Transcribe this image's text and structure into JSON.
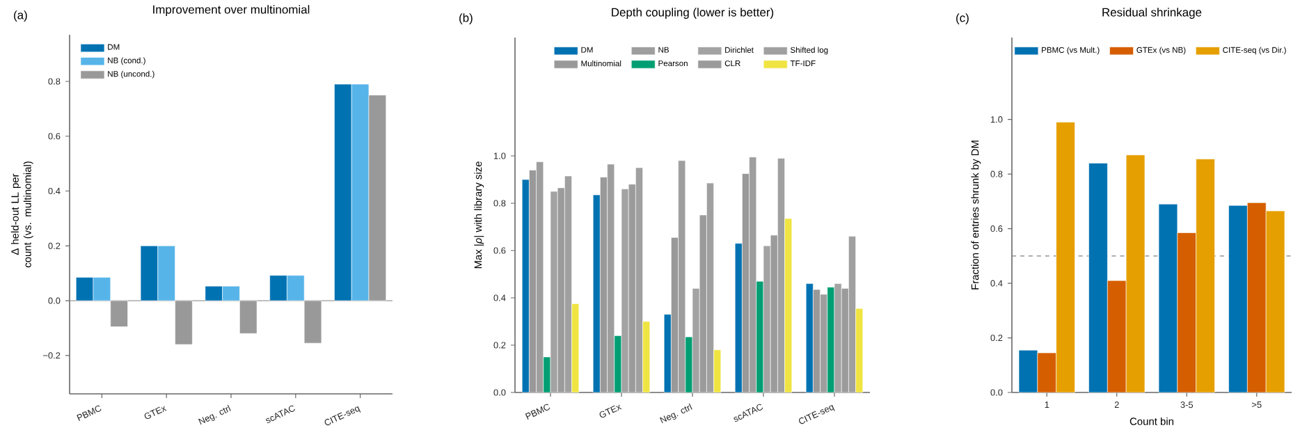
{
  "chart_data": [
    {
      "type": "bar",
      "title": "Improvement over multinomial",
      "ylabel": "Δ held-out LL per count (vs. multinomial)",
      "categories": [
        "PBMC",
        "GTEx",
        "Neg. ctrl",
        "scATAC",
        "CITE-seq"
      ],
      "series": [
        {
          "name": "DM",
          "color": "#0072b2",
          "values": [
            0.085,
            0.2,
            0.053,
            0.092,
            0.79
          ]
        },
        {
          "name": "NB (cond.)",
          "color": "#56b4e9",
          "values": [
            0.085,
            0.2,
            0.053,
            0.092,
            0.79
          ]
        },
        {
          "name": "NB (uncond.)",
          "color": "#999999",
          "values": [
            -0.095,
            -0.16,
            -0.12,
            -0.155,
            0.75
          ]
        }
      ],
      "ylim": [
        -0.34,
        0.97
      ],
      "yticks": [
        {
          "value": -0.2,
          "label": "−0.2"
        },
        {
          "value": 0,
          "label": "0.0"
        },
        {
          "value": 0.2,
          "label": "0.2"
        },
        {
          "value": 0.4,
          "label": "0.4"
        },
        {
          "value": 0.6,
          "label": "0.6"
        },
        {
          "value": 0.8,
          "label": "0.8"
        }
      ],
      "ref_lines": [
        {
          "axis": "y",
          "value": 0,
          "color": "#999999",
          "line_style": "solid"
        }
      ],
      "legend": "top left",
      "annotations": [
        "(a)"
      ]
    },
    {
      "type": "bar",
      "title": "Depth coupling (lower is better)",
      "ylabel": "Max |*ρ*| with library size",
      "categories": [
        "PBMC",
        "GTEx",
        "Neg. ctrl",
        "scATAC",
        "CITE-seq"
      ],
      "series": [
        {
          "name": "DM",
          "color": "#0072b2",
          "values": [
            0.9,
            0.835,
            0.33,
            0.63,
            0.46
          ]
        },
        {
          "name": "Multinomial",
          "color": "#999999",
          "values": [
            0.94,
            0.91,
            0.655,
            0.925,
            0.435
          ]
        },
        {
          "name": "NB",
          "color": "#9e9e9e",
          "values": [
            0.975,
            0.965,
            0.98,
            0.995,
            0.415
          ]
        },
        {
          "name": "Pearson",
          "color": "#009e73",
          "values": [
            0.15,
            0.24,
            0.235,
            0.47,
            0.445
          ]
        },
        {
          "name": "Dirichlet",
          "color": "#a3a3a3",
          "values": [
            0.85,
            0.86,
            0.44,
            0.62,
            0.46
          ]
        },
        {
          "name": "CLR",
          "color": "#9b9b9b",
          "values": [
            0.865,
            0.88,
            0.75,
            0.665,
            0.44
          ]
        },
        {
          "name": "Shifted log",
          "color": "#a0a0a0",
          "values": [
            0.915,
            0.95,
            0.885,
            0.99,
            0.66
          ]
        },
        {
          "name": "TF-IDF",
          "color": "#f0e442",
          "values": [
            0.375,
            0.3,
            0.18,
            0.735,
            0.355
          ]
        }
      ],
      "ylim": [
        0,
        1.5
      ],
      "yticks": [
        {
          "value": 0,
          "label": "0.0"
        },
        {
          "value": 0.2,
          "label": "0.2"
        },
        {
          "value": 0.4,
          "label": "0.4"
        },
        {
          "value": 0.6,
          "label": "0.6"
        },
        {
          "value": 0.8,
          "label": "0.8"
        },
        {
          "value": 1.0,
          "label": "1.0"
        }
      ],
      "legend": "top",
      "annotations": [
        "(b)"
      ]
    },
    {
      "type": "bar",
      "title": "Residual shrinkage",
      "xlabel": "Count bin",
      "ylabel": "Fraction of entries shrunk by DM",
      "categories": [
        "1",
        "2",
        "3-5",
        ">5"
      ],
      "series": [
        {
          "name": "PBMC (vs Mult.)",
          "color": "#0072b2",
          "values": [
            0.155,
            0.84,
            0.69,
            0.685
          ]
        },
        {
          "name": "GTEx (vs NB)",
          "color": "#d55e00",
          "values": [
            0.145,
            0.41,
            0.585,
            0.695
          ]
        },
        {
          "name": "CITE-seq (vs Dir.)",
          "color": "#e69f00",
          "values": [
            0.99,
            0.87,
            0.855,
            0.665
          ]
        }
      ],
      "ylim": [
        0,
        1.3
      ],
      "yticks": [
        {
          "value": 0,
          "label": "0.0"
        },
        {
          "value": 0.2,
          "label": "0.2"
        },
        {
          "value": 0.4,
          "label": "0.4"
        },
        {
          "value": 0.6,
          "label": "0.6"
        },
        {
          "value": 0.8,
          "label": "0.8"
        },
        {
          "value": 1.0,
          "label": "1.0"
        }
      ],
      "ref_lines": [
        {
          "axis": "y",
          "value": 0.5,
          "color": "#808080",
          "line_style": "dashed"
        }
      ],
      "legend": "top",
      "annotations": [
        "(c)"
      ]
    }
  ]
}
